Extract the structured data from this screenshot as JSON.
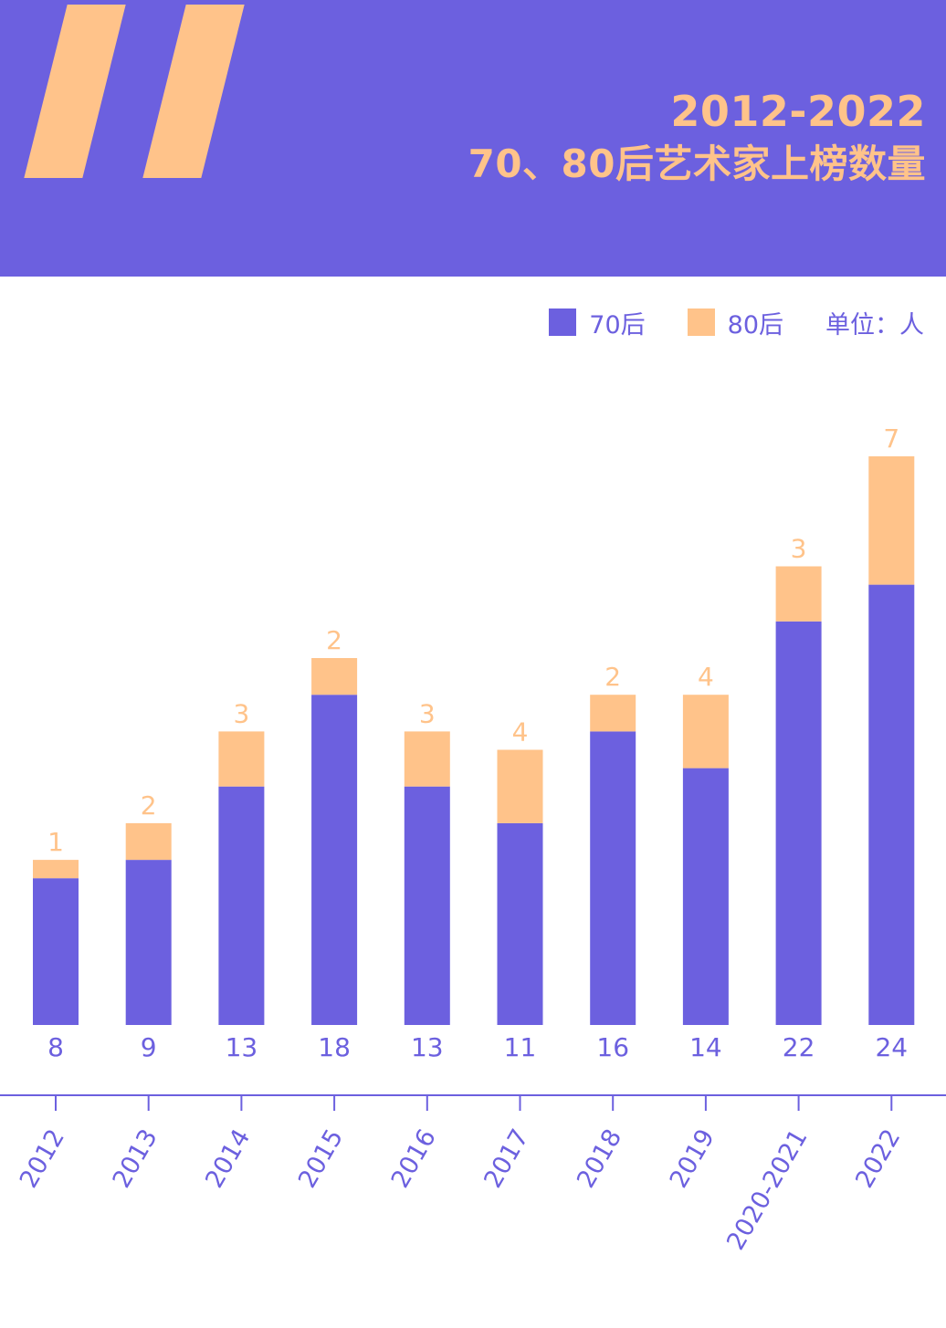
{
  "header": {
    "title_line1": "2012-2022",
    "title_line2": "70、80后艺术家上榜数量"
  },
  "legend": {
    "series_70": "70后",
    "series_80": "80后",
    "unit": "单位：人"
  },
  "colors": {
    "header_bg": "#6C60DF",
    "series_70": "#6C60DF",
    "series_80": "#FFC38A",
    "background": "#FFFFFF"
  },
  "chart_data": {
    "type": "bar",
    "stacked": true,
    "title": "2012-2022 70、80后艺术家上榜数量",
    "xlabel": "",
    "ylabel": "",
    "unit": "单位：人",
    "categories": [
      "2012",
      "2013",
      "2014",
      "2015",
      "2016",
      "2017",
      "2018",
      "2019",
      "2020-2021",
      "2022"
    ],
    "series": [
      {
        "name": "70后",
        "values": [
          8,
          9,
          13,
          18,
          13,
          11,
          16,
          14,
          22,
          24
        ]
      },
      {
        "name": "80后",
        "values": [
          1,
          2,
          3,
          2,
          3,
          4,
          2,
          4,
          3,
          7
        ]
      }
    ],
    "ylim": [
      0,
      31
    ],
    "grid": false,
    "legend_position": "top-right"
  }
}
